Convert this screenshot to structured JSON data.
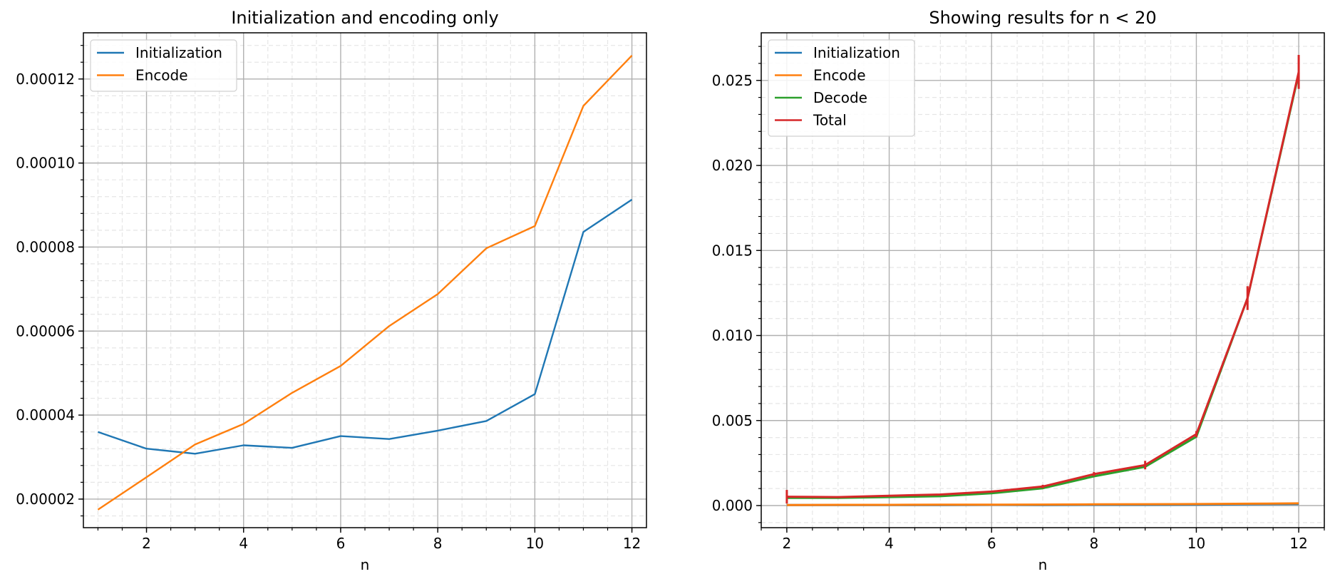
{
  "chart_data": [
    {
      "type": "line",
      "title": "Initialization and encoding only",
      "xlabel": "n",
      "ylabel": "",
      "xlim": [
        0.7,
        12.3
      ],
      "ylim": [
        1.32e-05,
        0.000131
      ],
      "xticks": [
        2,
        4,
        6,
        8,
        10,
        12
      ],
      "xtick_labels": [
        "2",
        "4",
        "6",
        "8",
        "10",
        "12"
      ],
      "yticks": [
        2e-05,
        4e-05,
        6e-05,
        8e-05,
        0.0001,
        0.00012
      ],
      "ytick_labels": [
        "0.00002",
        "0.00004",
        "0.00006",
        "0.00008",
        "0.00010",
        "0.00012"
      ],
      "grid": "major and minor",
      "legend_position": "upper left",
      "x": [
        1,
        2,
        3,
        4,
        5,
        6,
        7,
        8,
        9,
        10,
        11,
        12
      ],
      "series": [
        {
          "name": "Initialization",
          "color": "#1f77b4",
          "values": [
            3.6e-05,
            3.2e-05,
            3.08e-05,
            3.28e-05,
            3.22e-05,
            3.5e-05,
            3.43e-05,
            3.63e-05,
            3.86e-05,
            4.5e-05,
            8.36e-05,
            9.13e-05
          ]
        },
        {
          "name": "Encode",
          "color": "#ff7f0e",
          "values": [
            1.75e-05,
            2.52e-05,
            3.3e-05,
            3.79e-05,
            4.53e-05,
            5.17e-05,
            6.12e-05,
            6.88e-05,
            7.97e-05,
            8.5e-05,
            0.0001136,
            0.0001256
          ]
        }
      ]
    },
    {
      "type": "line",
      "title": "Showing results for n < 20",
      "xlabel": "n",
      "ylabel": "",
      "xlim": [
        1.5,
        12.5
      ],
      "ylim": [
        -0.0013,
        0.0278
      ],
      "xticks": [
        2,
        4,
        6,
        8,
        10,
        12
      ],
      "xtick_labels": [
        "2",
        "4",
        "6",
        "8",
        "10",
        "12"
      ],
      "yticks": [
        0,
        0.005,
        0.01,
        0.015,
        0.02,
        0.025
      ],
      "ytick_labels": [
        "0.000",
        "0.005",
        "0.010",
        "0.015",
        "0.020",
        "0.025"
      ],
      "grid": "major and minor",
      "legend_position": "upper left",
      "x": [
        2,
        3,
        4,
        5,
        6,
        7,
        8,
        9,
        10,
        11,
        12
      ],
      "series": [
        {
          "name": "Initialization",
          "color": "#1f77b4",
          "values": [
            3e-05,
            3e-05,
            3e-05,
            3e-05,
            4e-05,
            3e-05,
            4e-05,
            4e-05,
            5e-05,
            8e-05,
            9e-05
          ]
        },
        {
          "name": "Encode",
          "color": "#ff7f0e",
          "values": [
            3e-05,
            4e-05,
            4e-05,
            5e-05,
            5e-05,
            6e-05,
            7e-05,
            8e-05,
            9e-05,
            0.00011,
            0.00013
          ]
        },
        {
          "name": "Decode",
          "color": "#2ca02c",
          "values": [
            0.00045,
            0.00045,
            0.0005,
            0.00055,
            0.00072,
            0.00102,
            0.00172,
            0.00228,
            0.00405,
            0.0122,
            0.0254
          ]
        },
        {
          "name": "Total",
          "color": "#d62728",
          "values": [
            0.00052,
            0.0005,
            0.00058,
            0.00065,
            0.00082,
            0.00112,
            0.00185,
            0.00238,
            0.0042,
            0.0122,
            0.0255
          ],
          "errors": [
            0.0004,
            5e-05,
            5e-05,
            5e-05,
            5e-05,
            0.0001,
            0.00012,
            0.00025,
            0.00018,
            0.0007,
            0.001
          ]
        }
      ]
    }
  ]
}
